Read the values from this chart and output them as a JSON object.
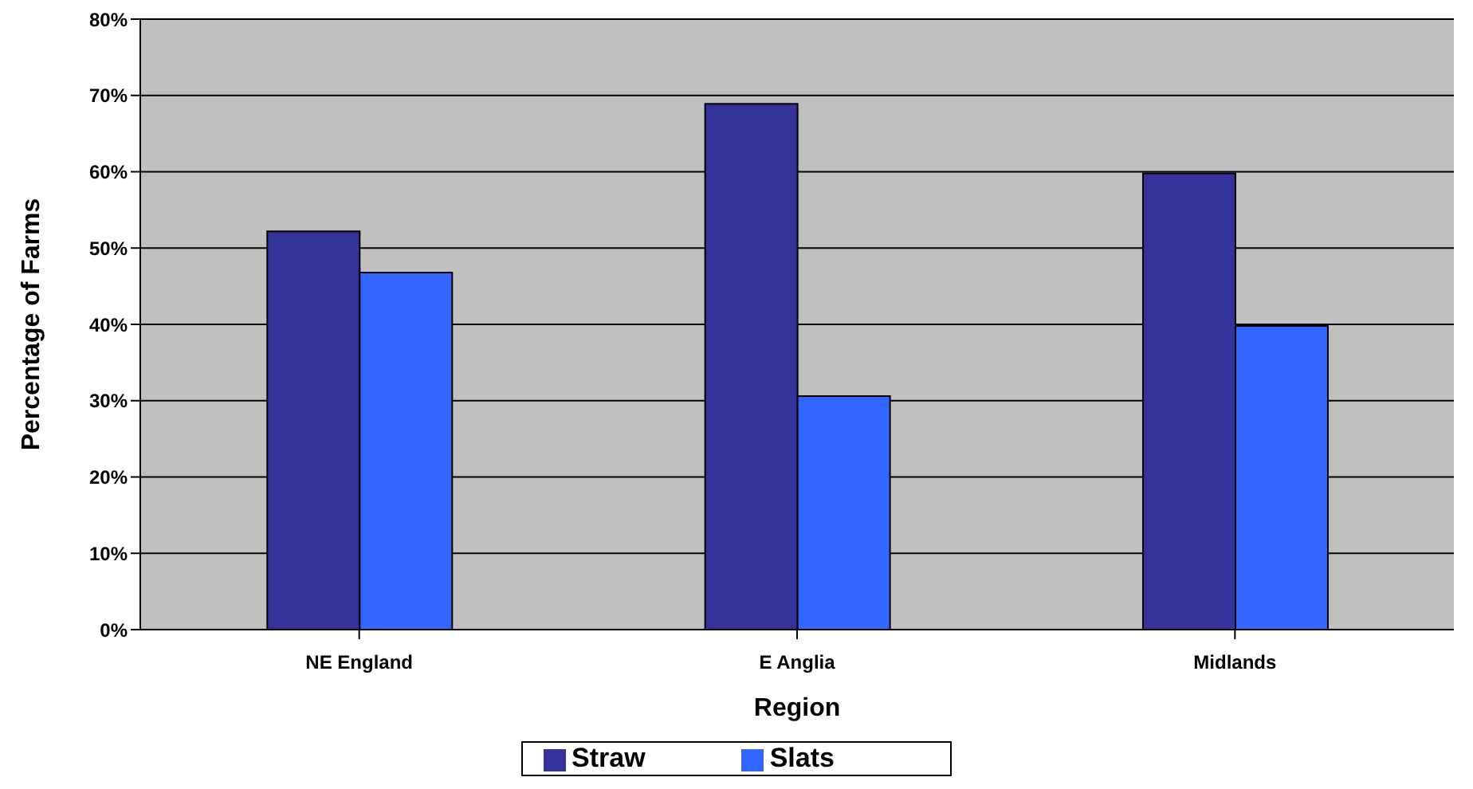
{
  "chart_data": {
    "type": "bar",
    "xlabel": "Region",
    "ylabel": "Percentage of Farms",
    "categories": [
      "NE England",
      "E Anglia",
      "Midlands"
    ],
    "series": [
      {
        "name": "Straw",
        "color": "#333399",
        "values": [
          52.2,
          68.9,
          59.8
        ]
      },
      {
        "name": "Slats",
        "color": "#3366ff",
        "values": [
          46.8,
          30.6,
          39.8
        ]
      }
    ],
    "ylim": [
      0,
      80
    ],
    "yticks": [
      {
        "value": 0,
        "label": "0%"
      },
      {
        "value": 10,
        "label": "10%"
      },
      {
        "value": 20,
        "label": "20%"
      },
      {
        "value": 30,
        "label": "30%"
      },
      {
        "value": 40,
        "label": "40%"
      },
      {
        "value": 50,
        "label": "50%"
      },
      {
        "value": 60,
        "label": "60%"
      },
      {
        "value": 70,
        "label": "70%"
      },
      {
        "value": 80,
        "label": "80%"
      }
    ],
    "grid": "y",
    "legend": "bottom"
  }
}
